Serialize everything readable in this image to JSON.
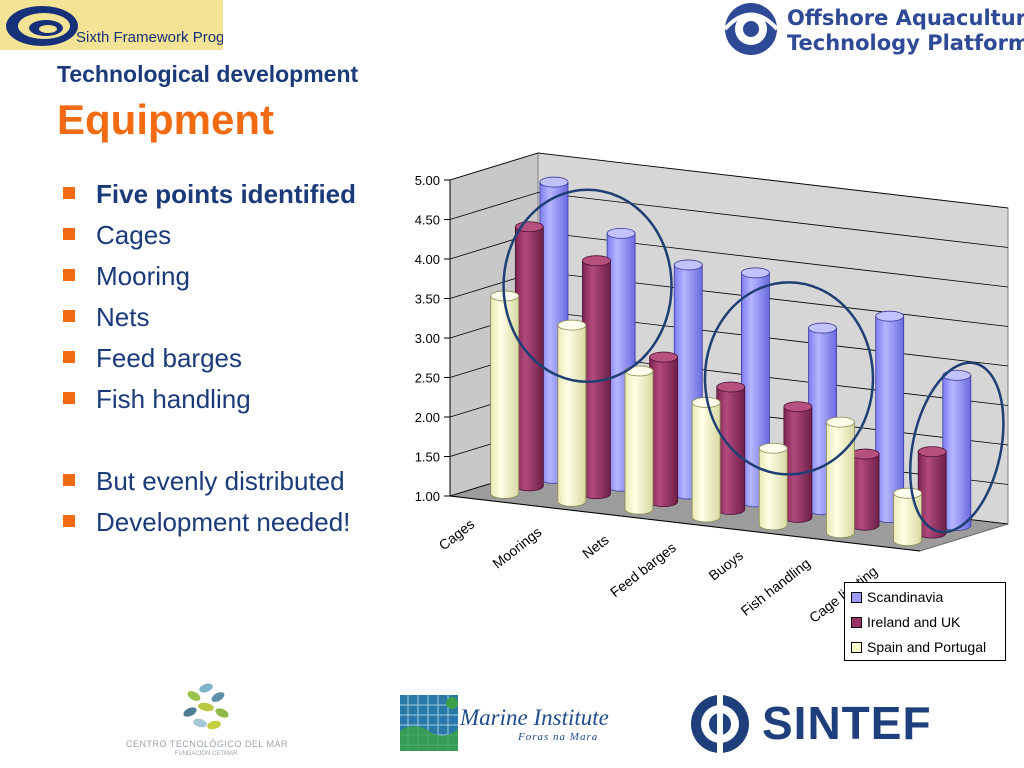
{
  "header": {
    "left_logo_text": "Sixth Framework Programme",
    "right_logo_line1": "Offshore Aquaculture",
    "right_logo_line2": "Technology Platform"
  },
  "section_title": "Technological development",
  "page_title": "Equipment",
  "bullets": [
    "Five points identified",
    "Cages",
    "Mooring",
    "Nets",
    "Feed barges",
    "Fish handling",
    "But evenly distributed",
    "Development needed!"
  ],
  "colors": {
    "accent_orange": "#f26a12",
    "title_blue": "#1a3a7a",
    "scandinavia": "#9a9aff",
    "ireland_uk": "#993366",
    "spain_portugal": "#ffffcc",
    "highlight_ring": "#1f3f74"
  },
  "chart_data": {
    "type": "bar",
    "style": "3d-cylinder",
    "categories": [
      "Cages",
      "Moorings",
      "Nets",
      "Feed barges",
      "Buoys",
      "Fish handling",
      "Cage lighting"
    ],
    "series": [
      {
        "name": "Scandinavia",
        "values": [
          4.75,
          4.2,
          3.9,
          3.9,
          3.3,
          3.55,
          2.9
        ]
      },
      {
        "name": "Ireland and UK",
        "values": [
          4.28,
          3.95,
          2.83,
          2.55,
          2.4,
          1.9,
          2.03
        ]
      },
      {
        "name": "Spain and Portugal",
        "values": [
          3.5,
          3.23,
          2.75,
          2.45,
          1.97,
          2.4,
          1.6
        ]
      }
    ],
    "ylim": [
      1.0,
      5.0
    ],
    "yticks": [
      "1.00",
      "1.50",
      "2.00",
      "2.50",
      "3.00",
      "3.50",
      "4.00",
      "4.50",
      "5.00"
    ],
    "grid": true,
    "legend": "bottom-right",
    "annotations": [
      {
        "shape": "ellipse",
        "around": [
          "Cages",
          "Moorings"
        ],
        "series": "Scandinavia"
      },
      {
        "shape": "ellipse",
        "around": [
          "Feed barges",
          "Buoys"
        ],
        "series": "Scandinavia"
      },
      {
        "shape": "ellipse",
        "around": [
          "Cage lighting"
        ],
        "series": "Scandinavia"
      }
    ]
  },
  "footer": {
    "cetmar_line1": "CENTRO TECNOLÓGICO DEL MAR",
    "cetmar_line2": "FUNDACIÓN CETMAR",
    "marine_institute_name": "Marine Institute",
    "marine_institute_sub": "Foras na Mara",
    "sintef_name": "SINTEF"
  }
}
